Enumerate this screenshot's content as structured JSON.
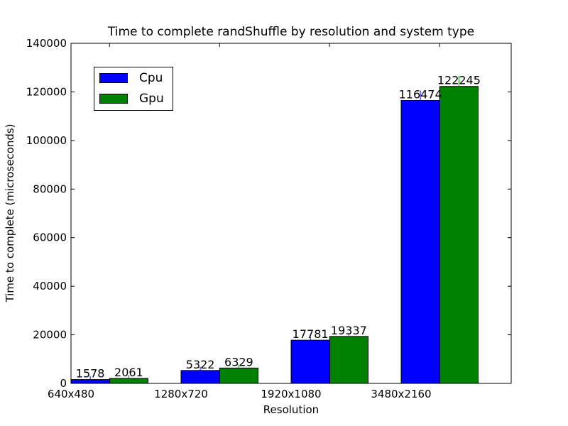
{
  "chart_data": {
    "type": "bar",
    "title": "Time to complete randShuffle by resolution and system type",
    "xlabel": "Resolution",
    "ylabel": "Time to complete (microseconds)",
    "categories": [
      "640x480",
      "1280x720",
      "1920x1080",
      "3480x2160"
    ],
    "series": [
      {
        "name": "Cpu",
        "color": "#0000ff",
        "values": [
          1578,
          5322,
          17781,
          116474
        ],
        "labels": [
          "1578",
          "5322",
          "17781",
          "116474"
        ]
      },
      {
        "name": "Gpu",
        "color": "#008000",
        "values": [
          2061,
          6329,
          19337,
          122245
        ],
        "labels": [
          "2061",
          "6329",
          "19337",
          "122245"
        ]
      }
    ],
    "ylim": [
      0,
      140000
    ],
    "yticks": [
      0,
      20000,
      40000,
      60000,
      80000,
      100000,
      120000,
      140000
    ],
    "ytick_labels": [
      "0",
      "20000",
      "40000",
      "60000",
      "80000",
      "100000",
      "120000",
      "140000"
    ],
    "grid": false,
    "legend_position": "upper-left"
  }
}
